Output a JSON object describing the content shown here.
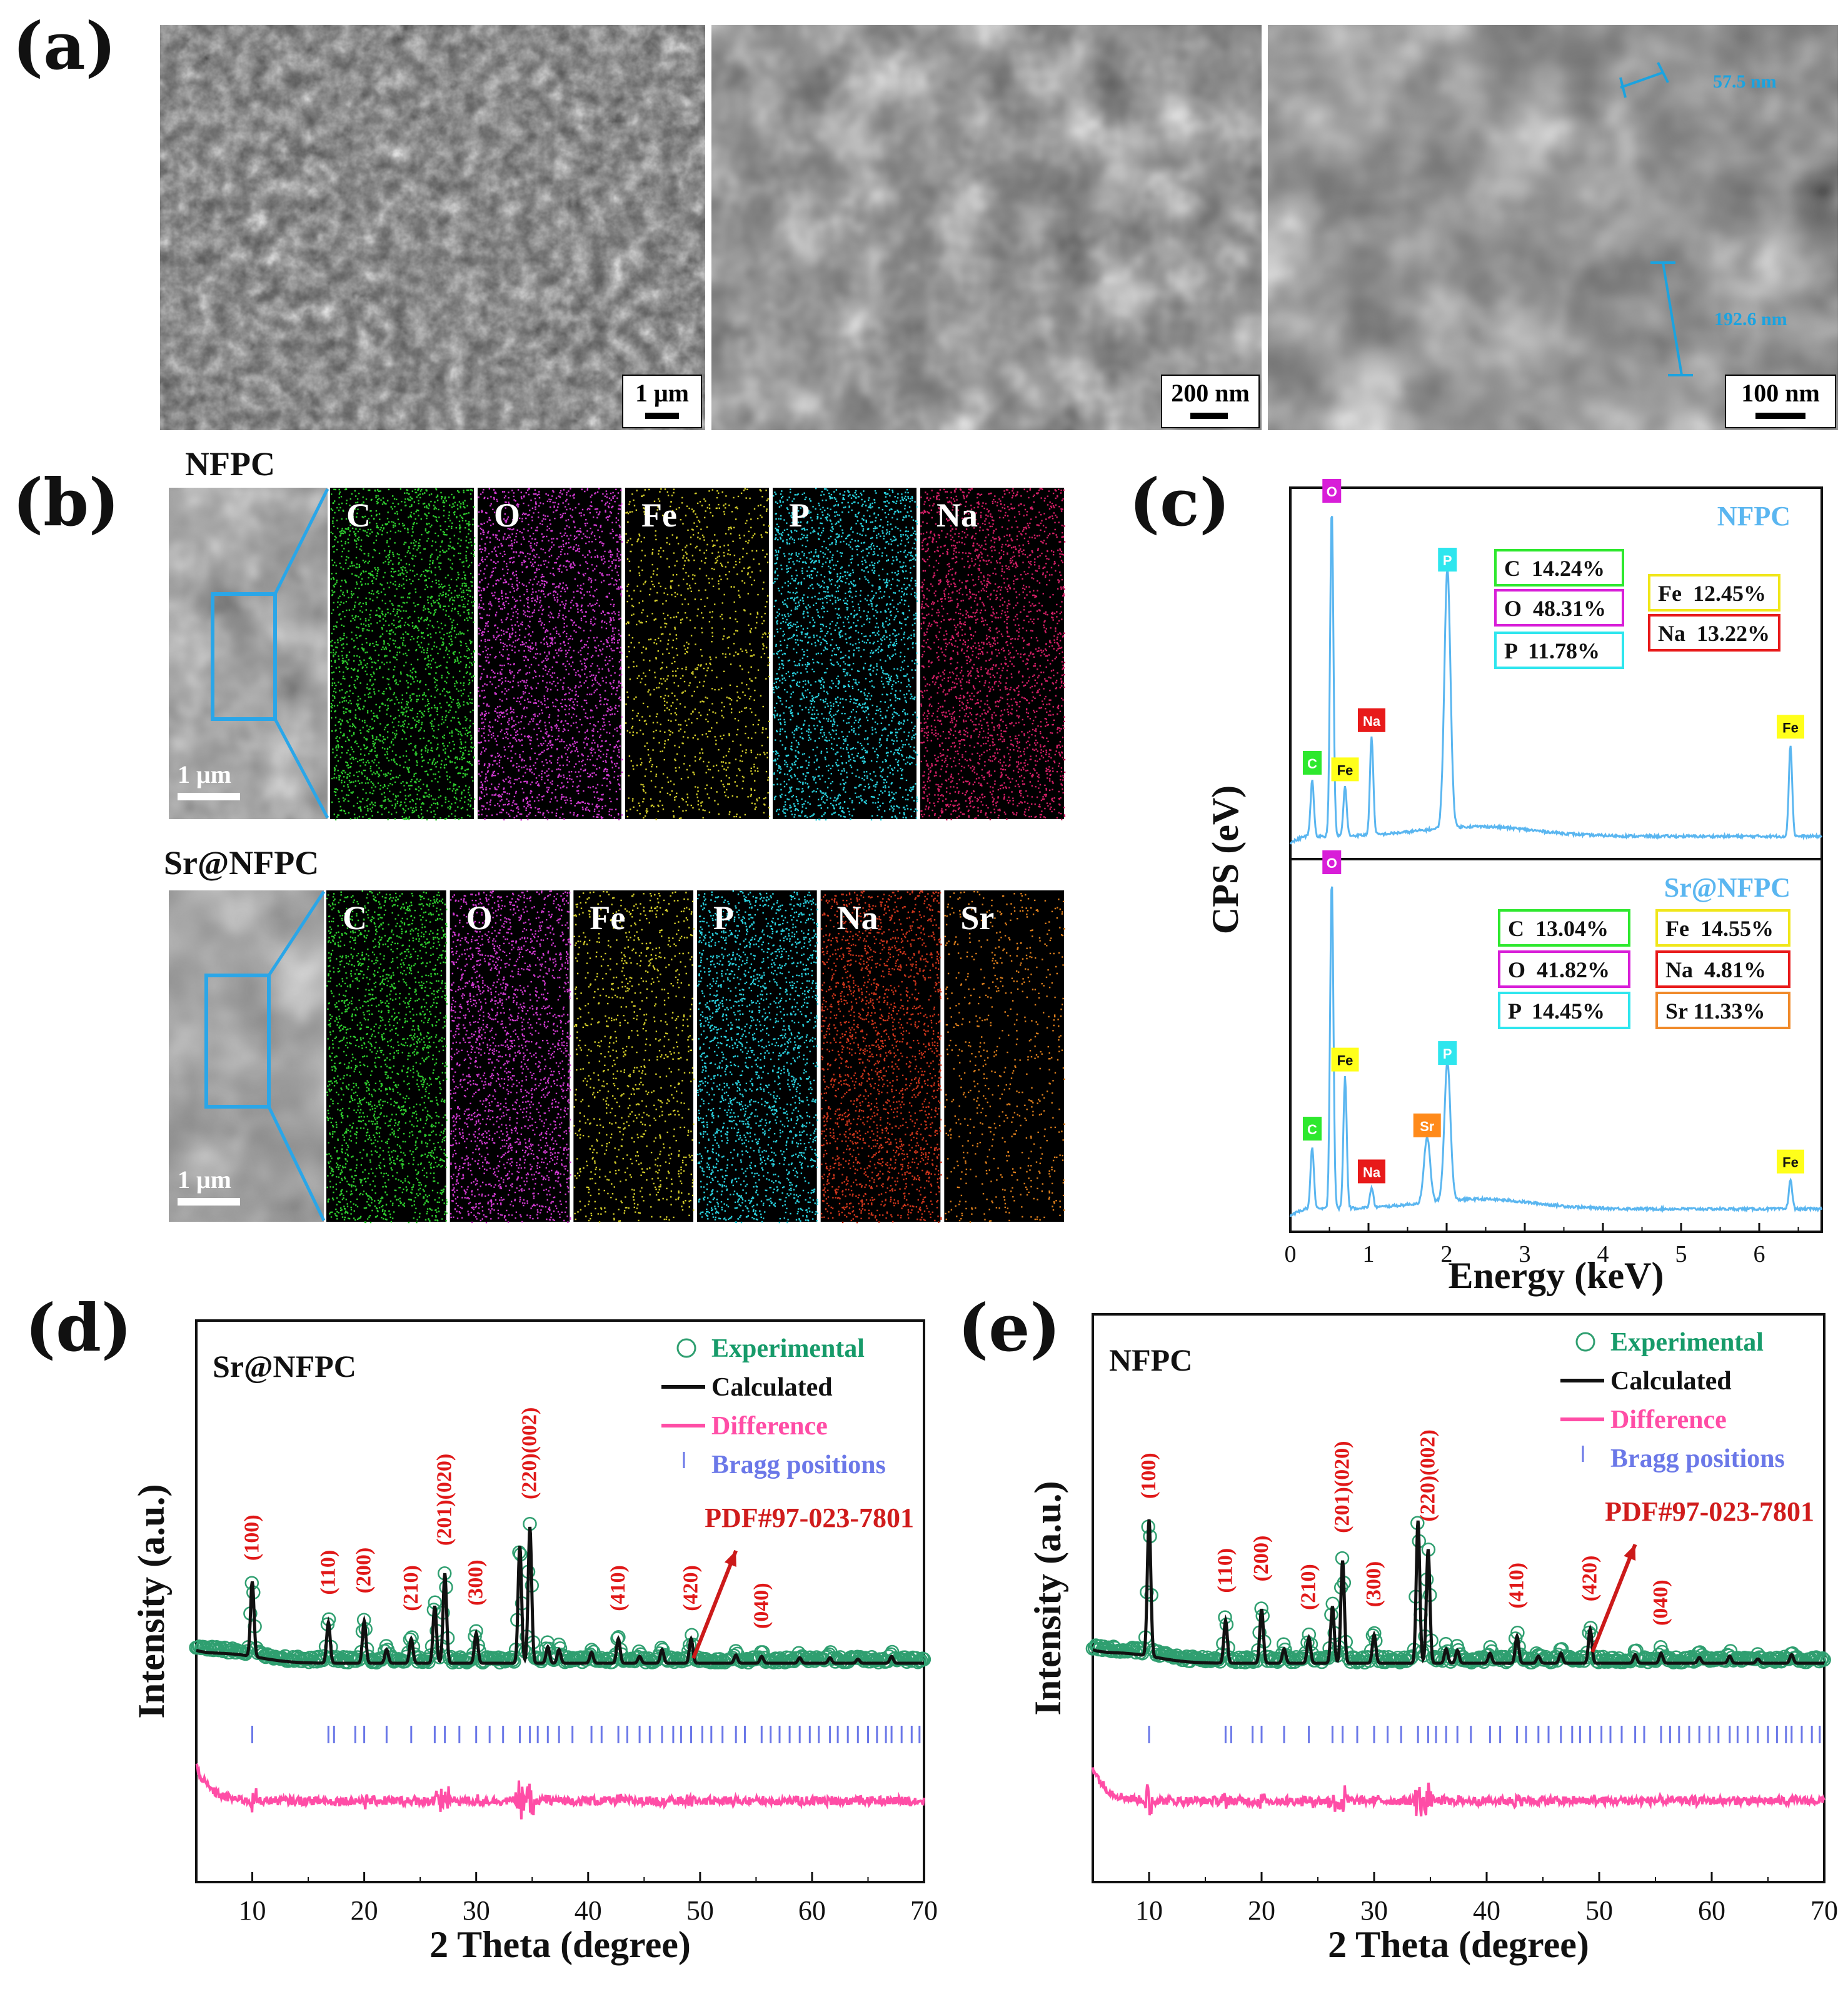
{
  "panel_labels": {
    "a": "(a)",
    "b": "(b)",
    "c": "(c)",
    "d": "(d)",
    "e": "(e)"
  },
  "sem": {
    "scale_bars": [
      "1 μm",
      "200 nm",
      "100 nm"
    ],
    "measurements": [
      "57.5 nm",
      "192.6 nm"
    ]
  },
  "mapping": {
    "nfpc_title": "NFPC",
    "sr_title": "Sr@NFPC",
    "scale_bar": "1 μm",
    "nfpc_elements": [
      "C",
      "O",
      "Fe",
      "P",
      "Na"
    ],
    "sr_elements": [
      "C",
      "O",
      "Fe",
      "P",
      "Na",
      "Sr"
    ],
    "colors": {
      "C": "#2fd02f",
      "O": "#d23ad2",
      "Fe": "#d6cf2a",
      "P": "#2ad2e0",
      "Na_nfpc": "#d41f66",
      "Na_sr": "#d0361c",
      "Sr": "#e0801c"
    }
  },
  "chart_data": [
    {
      "type": "line",
      "panel": "(c)",
      "title": "",
      "xlabel": "Energy (keV)",
      "ylabel": "CPS (eV)",
      "xlim": [
        0,
        6.8
      ],
      "xticks": [
        "0",
        "1",
        "2",
        "3",
        "4",
        "5",
        "6"
      ],
      "series": [
        {
          "name": "NFPC",
          "color": "#5ab6f0",
          "peaks": [
            {
              "element": "C",
              "energy": 0.28,
              "height": 0.17,
              "label_color": "#2ee82e"
            },
            {
              "element": "O",
              "energy": 0.53,
              "height": 1.0,
              "label_color": "#d81ed8"
            },
            {
              "element": "Fe",
              "energy": 0.7,
              "height": 0.15,
              "label_color": "#ffff1a"
            },
            {
              "element": "Na",
              "energy": 1.04,
              "height": 0.3,
              "label_color": "#e81a1a"
            },
            {
              "element": "P",
              "energy": 2.01,
              "height": 0.79,
              "label_color": "#2ee6ee"
            },
            {
              "element": "Fe",
              "energy": 6.4,
              "height": 0.28,
              "label_color": "#ffff1a"
            }
          ],
          "composition": [
            "C  14.24%",
            "O  48.31%",
            "P  11.78%",
            "Fe  12.45%",
            "Na  13.22%"
          ]
        },
        {
          "name": "Sr@NFPC",
          "color": "#5ab6f0",
          "peaks": [
            {
              "element": "C",
              "energy": 0.28,
              "height": 0.19,
              "label_color": "#2ee82e"
            },
            {
              "element": "O",
              "energy": 0.53,
              "height": 1.0,
              "label_color": "#d81ed8"
            },
            {
              "element": "Fe",
              "energy": 0.7,
              "height": 0.4,
              "label_color": "#ffff1a"
            },
            {
              "element": "Na",
              "energy": 1.04,
              "height": 0.06,
              "label_color": "#e81a1a"
            },
            {
              "element": "Sr",
              "energy": 1.75,
              "height": 0.2,
              "label_color": "#ff8a1a"
            },
            {
              "element": "P",
              "energy": 2.01,
              "height": 0.42,
              "label_color": "#2ee6ee"
            },
            {
              "element": "Fe",
              "energy": 6.4,
              "height": 0.09,
              "label_color": "#ffff1a"
            }
          ],
          "composition": [
            "C  13.04%",
            "O  41.82%",
            "P  14.45%",
            "Fe  14.55%",
            "Na  4.81%",
            "Sr 11.33%"
          ]
        }
      ]
    },
    {
      "type": "line",
      "panel": "(d)",
      "sample": "Sr@NFPC",
      "xlabel": "2 Theta (degree)",
      "ylabel": "Intensity (a.u.)",
      "xlim": [
        5,
        70
      ],
      "xticks": [
        "10",
        "20",
        "30",
        "40",
        "50",
        "60",
        "70"
      ],
      "legend": [
        "Experimental",
        "Calculated",
        "Difference",
        "Bragg positions"
      ],
      "legend_colors": [
        "#179b6a",
        "#111111",
        "#ff4da6",
        "#6b78e8"
      ],
      "reference": "PDF#97-023-7801",
      "peaks": [
        {
          "x": 10.0,
          "h": 0.55
        },
        {
          "x": 16.8,
          "h": 0.3
        },
        {
          "x": 20.0,
          "h": 0.31
        },
        {
          "x": 22.0,
          "h": 0.1
        },
        {
          "x": 24.2,
          "h": 0.18
        },
        {
          "x": 26.3,
          "h": 0.42
        },
        {
          "x": 27.2,
          "h": 0.66
        },
        {
          "x": 30.0,
          "h": 0.22
        },
        {
          "x": 33.9,
          "h": 0.86
        },
        {
          "x": 34.8,
          "h": 1.0
        },
        {
          "x": 36.4,
          "h": 0.12
        },
        {
          "x": 37.4,
          "h": 0.1
        },
        {
          "x": 40.3,
          "h": 0.08
        },
        {
          "x": 42.7,
          "h": 0.18
        },
        {
          "x": 44.6,
          "h": 0.05
        },
        {
          "x": 46.6,
          "h": 0.1
        },
        {
          "x": 49.2,
          "h": 0.18
        },
        {
          "x": 53.2,
          "h": 0.06
        },
        {
          "x": 55.5,
          "h": 0.05
        },
        {
          "x": 58.9,
          "h": 0.04
        },
        {
          "x": 61.6,
          "h": 0.04
        },
        {
          "x": 64.1,
          "h": 0.03
        },
        {
          "x": 67.1,
          "h": 0.05
        }
      ],
      "hkl_labels": [
        {
          "text": "(100)",
          "x": 10.0
        },
        {
          "text": "(110)",
          "x": 16.8
        },
        {
          "text": "(200)",
          "x": 20.0
        },
        {
          "text": "(210)",
          "x": 24.2
        },
        {
          "text": "(201)(020)",
          "x": 27.2
        },
        {
          "text": "(300)",
          "x": 30.0
        },
        {
          "text": "(220)(002)",
          "x": 34.8
        },
        {
          "text": "(410)",
          "x": 42.7
        },
        {
          "text": "(420)",
          "x": 49.2
        },
        {
          "text": "(040)",
          "x": 55.5
        }
      ]
    },
    {
      "type": "line",
      "panel": "(e)",
      "sample": "NFPC",
      "xlabel": "2 Theta (degree)",
      "ylabel": "Intensity (a.u.)",
      "xlim": [
        5,
        70
      ],
      "xticks": [
        "10",
        "20",
        "30",
        "40",
        "50",
        "60",
        "70"
      ],
      "legend": [
        "Experimental",
        "Calculated",
        "Difference",
        "Bragg positions"
      ],
      "legend_colors": [
        "#179b6a",
        "#111111",
        "#ff4da6",
        "#6b78e8"
      ],
      "reference": "PDF#97-023-7801",
      "peaks": [
        {
          "x": 10.0,
          "h": 0.96
        },
        {
          "x": 16.8,
          "h": 0.3
        },
        {
          "x": 20.0,
          "h": 0.38
        },
        {
          "x": 22.0,
          "h": 0.1
        },
        {
          "x": 24.2,
          "h": 0.18
        },
        {
          "x": 26.3,
          "h": 0.4
        },
        {
          "x": 27.2,
          "h": 0.72
        },
        {
          "x": 30.0,
          "h": 0.2
        },
        {
          "x": 33.9,
          "h": 1.0
        },
        {
          "x": 34.8,
          "h": 0.8
        },
        {
          "x": 36.4,
          "h": 0.1
        },
        {
          "x": 37.4,
          "h": 0.09
        },
        {
          "x": 40.3,
          "h": 0.07
        },
        {
          "x": 42.7,
          "h": 0.19
        },
        {
          "x": 44.6,
          "h": 0.05
        },
        {
          "x": 46.6,
          "h": 0.07
        },
        {
          "x": 49.2,
          "h": 0.24
        },
        {
          "x": 53.2,
          "h": 0.06
        },
        {
          "x": 55.5,
          "h": 0.07
        },
        {
          "x": 58.9,
          "h": 0.04
        },
        {
          "x": 61.6,
          "h": 0.05
        },
        {
          "x": 64.1,
          "h": 0.03
        },
        {
          "x": 67.1,
          "h": 0.06
        }
      ],
      "hkl_labels": [
        {
          "text": "(100)",
          "x": 10.0
        },
        {
          "text": "(110)",
          "x": 16.8
        },
        {
          "text": "(200)",
          "x": 20.0
        },
        {
          "text": "(210)",
          "x": 24.2
        },
        {
          "text": "(201)(020)",
          "x": 27.2
        },
        {
          "text": "(300)",
          "x": 30.0
        },
        {
          "text": "(220)(002)",
          "x": 34.8
        },
        {
          "text": "(410)",
          "x": 42.7
        },
        {
          "text": "(420)",
          "x": 49.2
        },
        {
          "text": "(040)",
          "x": 55.5
        }
      ]
    }
  ]
}
